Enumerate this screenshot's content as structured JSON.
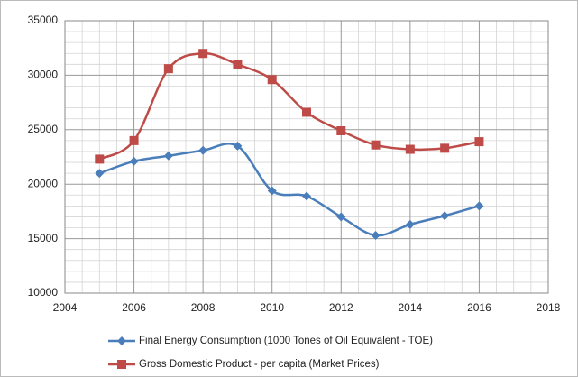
{
  "chart_data": {
    "type": "line",
    "x": [
      2005,
      2006,
      2007,
      2008,
      2009,
      2010,
      2011,
      2012,
      2013,
      2014,
      2015,
      2016
    ],
    "series": [
      {
        "name": "Final Energy Consumption (1000 Tones of Oil Equivalent - TOE)",
        "color": "#4a7ebb",
        "marker": "diamond",
        "values": [
          21000,
          22100,
          22600,
          23100,
          23500,
          19400,
          18900,
          17000,
          15300,
          16300,
          17100,
          18000
        ]
      },
      {
        "name": "Gross Domestic Product - per capita (Market Prices)",
        "color": "#be4b48",
        "marker": "square",
        "values": [
          22300,
          24000,
          30600,
          32000,
          31000,
          29600,
          26600,
          24900,
          23600,
          23200,
          23300,
          23900
        ]
      }
    ],
    "xlim": [
      2004,
      2018
    ],
    "xticks": [
      2004,
      2006,
      2008,
      2010,
      2012,
      2014,
      2016,
      2018
    ],
    "ylim": [
      10000,
      35000
    ],
    "yticks": [
      10000,
      15000,
      20000,
      25000,
      30000,
      35000
    ],
    "grid": true,
    "legend": "bottom",
    "smooth": true
  }
}
